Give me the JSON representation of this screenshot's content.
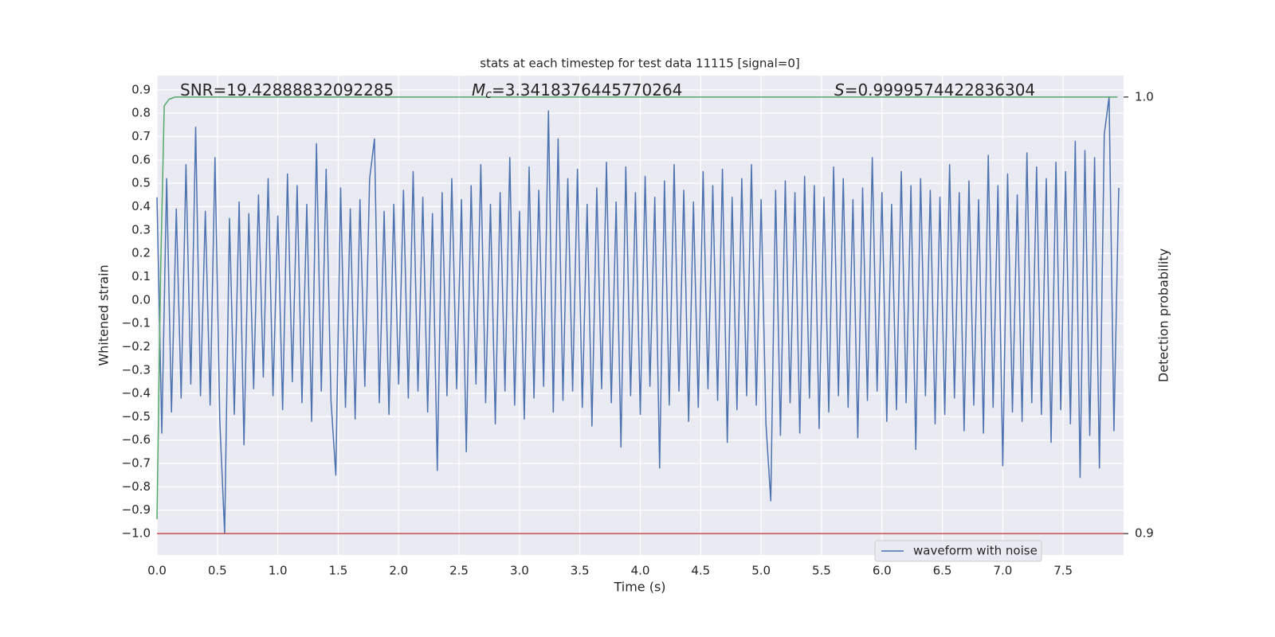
{
  "chart_data": {
    "type": "line",
    "title": "stats at each timestep for test data 11115 [signal=0]",
    "xlabel": "Time (s)",
    "ylabel": "Whitened strain",
    "y2label": "Detection probability",
    "annotations": [
      {
        "text": "SNR=19.42888832092285"
      },
      {
        "symbol": "M",
        "sub": "c",
        "text": "=3.3418376445770264"
      },
      {
        "symbol": "S",
        "text": "=0.9999574422836304"
      }
    ],
    "xlim": [
      0,
      8.0
    ],
    "ylim": [
      -1.092,
      0.961
    ],
    "y2lim": [
      0.8951,
      1.0049
    ],
    "xticks": [
      {
        "value": 0,
        "label": "0.0"
      },
      0.5,
      {
        "value": 1,
        "label": "1.0"
      },
      1.5,
      {
        "value": 2,
        "label": "2.0"
      },
      2.5,
      {
        "value": 3,
        "label": "3.0"
      },
      3.5,
      {
        "value": 4,
        "label": "4.0"
      },
      4.5,
      {
        "value": 5,
        "label": "5.0"
      },
      5.5,
      {
        "value": 6,
        "label": "6.0"
      },
      6.5,
      {
        "value": 7,
        "label": "7.0"
      },
      7.5
    ],
    "yticks": [
      {
        "value": -1.0,
        "label": "−1.0"
      },
      {
        "value": -0.9,
        "label": "−0.9"
      },
      {
        "value": -0.8,
        "label": "−0.8"
      },
      {
        "value": -0.7,
        "label": "−0.7"
      },
      {
        "value": -0.6,
        "label": "−0.6"
      },
      {
        "value": -0.5,
        "label": "−0.5"
      },
      {
        "value": -0.4,
        "label": "−0.4"
      },
      {
        "value": -0.3,
        "label": "−0.3"
      },
      {
        "value": -0.2,
        "label": "−0.2"
      },
      {
        "value": -0.1,
        "label": "−0.1"
      },
      {
        "value": 0,
        "label": "0.0"
      },
      0.1,
      0.2,
      0.3,
      0.4,
      0.5,
      0.6,
      0.7,
      0.8,
      0.9
    ],
    "y2ticks": [
      0.9,
      {
        "value": 1,
        "label": "1.0"
      }
    ],
    "grid": true,
    "legend": "lower right",
    "series": [
      {
        "name": "waveform with noise",
        "color": "#4c72b0",
        "axis": "y",
        "x": [
          0,
          0.04,
          0.08,
          0.12,
          0.16,
          0.2,
          0.24,
          0.28,
          0.32,
          0.36,
          0.4,
          0.44,
          0.48,
          0.52,
          0.56,
          0.6,
          0.64,
          0.68,
          0.72,
          0.76,
          0.8,
          0.84,
          0.88,
          0.92,
          0.96,
          1,
          1.04,
          1.08,
          1.12,
          1.16,
          1.2,
          1.24,
          1.28,
          1.32,
          1.36,
          1.4,
          1.44,
          1.48,
          1.52,
          1.56,
          1.6,
          1.64,
          1.68,
          1.72,
          1.76,
          1.8,
          1.84,
          1.88,
          1.92,
          1.96,
          2,
          2.04,
          2.08,
          2.12,
          2.16,
          2.2,
          2.24,
          2.28,
          2.32,
          2.36,
          2.4,
          2.44,
          2.48,
          2.52,
          2.56,
          2.6,
          2.64,
          2.68,
          2.72,
          2.76,
          2.8,
          2.84,
          2.88,
          2.92,
          2.96,
          3,
          3.04,
          3.08,
          3.12,
          3.16,
          3.2,
          3.24,
          3.28,
          3.32,
          3.36,
          3.4,
          3.44,
          3.48,
          3.52,
          3.56,
          3.6,
          3.64,
          3.68,
          3.72,
          3.76,
          3.8,
          3.84,
          3.88,
          3.92,
          3.96,
          4,
          4.04,
          4.08,
          4.12,
          4.16,
          4.2,
          4.24,
          4.28,
          4.32,
          4.36,
          4.4,
          4.44,
          4.48,
          4.52,
          4.56,
          4.6,
          4.64,
          4.68,
          4.72,
          4.76,
          4.8,
          4.84,
          4.88,
          4.92,
          4.96,
          5,
          5.04,
          5.08,
          5.12,
          5.16,
          5.2,
          5.24,
          5.28,
          5.32,
          5.36,
          5.4,
          5.44,
          5.48,
          5.52,
          5.56,
          5.6,
          5.64,
          5.68,
          5.72,
          5.76,
          5.8,
          5.84,
          5.88,
          5.92,
          5.96,
          6,
          6.04,
          6.08,
          6.12,
          6.16,
          6.2,
          6.24,
          6.28,
          6.32,
          6.36,
          6.4,
          6.44,
          6.48,
          6.52,
          6.56,
          6.6,
          6.64,
          6.68,
          6.72,
          6.76,
          6.8,
          6.84,
          6.88,
          6.92,
          6.96,
          7,
          7.04,
          7.08,
          7.12,
          7.16,
          7.2,
          7.24,
          7.28,
          7.32,
          7.36,
          7.4,
          7.44,
          7.48,
          7.52,
          7.56,
          7.6,
          7.64,
          7.68,
          7.72,
          7.76,
          7.8,
          7.84,
          7.88,
          7.92,
          7.96
        ],
        "values": [
          0.44,
          -0.57,
          0.52,
          -0.48,
          0.39,
          -0.42,
          0.58,
          -0.36,
          0.74,
          -0.41,
          0.38,
          -0.45,
          0.61,
          -0.52,
          -1.0,
          0.35,
          -0.49,
          0.42,
          -0.62,
          0.37,
          -0.38,
          0.45,
          -0.33,
          0.52,
          -0.41,
          0.36,
          -0.47,
          0.54,
          -0.35,
          0.49,
          -0.44,
          0.41,
          -0.52,
          0.67,
          -0.39,
          0.56,
          -0.43,
          -0.75,
          0.48,
          -0.46,
          0.39,
          -0.51,
          0.43,
          -0.37,
          0.52,
          0.69,
          -0.44,
          0.38,
          -0.49,
          0.41,
          -0.36,
          0.47,
          -0.42,
          0.55,
          -0.39,
          0.44,
          -0.48,
          0.37,
          -0.73,
          0.46,
          -0.41,
          0.52,
          -0.38,
          0.43,
          -0.65,
          0.49,
          -0.36,
          0.58,
          -0.44,
          0.41,
          -0.53,
          0.46,
          -0.39,
          0.61,
          -0.45,
          0.38,
          -0.51,
          0.57,
          -0.42,
          0.47,
          -0.37,
          0.81,
          -0.48,
          0.69,
          -0.43,
          0.52,
          -0.39,
          0.56,
          -0.46,
          0.41,
          -0.54,
          0.48,
          -0.38,
          0.59,
          -0.44,
          0.42,
          -0.63,
          0.57,
          -0.41,
          0.46,
          -0.49,
          0.53,
          -0.37,
          0.44,
          -0.72,
          0.51,
          -0.45,
          0.58,
          -0.39,
          0.47,
          -0.52,
          0.42,
          -0.46,
          0.55,
          -0.38,
          0.49,
          -0.43,
          0.56,
          -0.61,
          0.44,
          -0.47,
          0.52,
          -0.41,
          0.58,
          -0.45,
          0.43,
          -0.53,
          -0.86,
          0.47,
          -0.58,
          0.51,
          -0.44,
          0.46,
          -0.57,
          0.53,
          -0.42,
          0.49,
          -0.55,
          0.44,
          -0.48,
          0.57,
          -0.41,
          0.52,
          -0.46,
          0.43,
          -0.59,
          0.48,
          -0.43,
          0.61,
          -0.39,
          0.46,
          -0.52,
          0.41,
          -0.47,
          0.55,
          -0.44,
          0.49,
          -0.64,
          0.52,
          -0.41,
          0.47,
          -0.53,
          0.44,
          -0.49,
          0.58,
          -0.42,
          0.46,
          -0.56,
          0.51,
          -0.45,
          0.43,
          -0.57,
          0.62,
          -0.46,
          0.49,
          -0.71,
          0.54,
          -0.48,
          0.45,
          -0.52,
          0.63,
          -0.44,
          0.57,
          -0.49,
          0.52,
          -0.61,
          0.59,
          -0.47,
          0.55,
          -0.53,
          0.68,
          -0.76,
          0.64,
          -0.58,
          0.61,
          -0.72,
          0.71,
          0.87,
          -0.56,
          0.48
        ]
      },
      {
        "color": "#55a868",
        "axis": "y2",
        "x": [
          0,
          0.03,
          0.06,
          0.1,
          0.15,
          7.95
        ],
        "values": [
          0.9033,
          0.96,
          0.998,
          0.9995,
          1.0,
          1.0
        ]
      },
      {
        "color": "#c44e52",
        "axis": "y2",
        "x": [
          0,
          8.0
        ],
        "values": [
          0.9,
          0.9
        ]
      }
    ]
  }
}
